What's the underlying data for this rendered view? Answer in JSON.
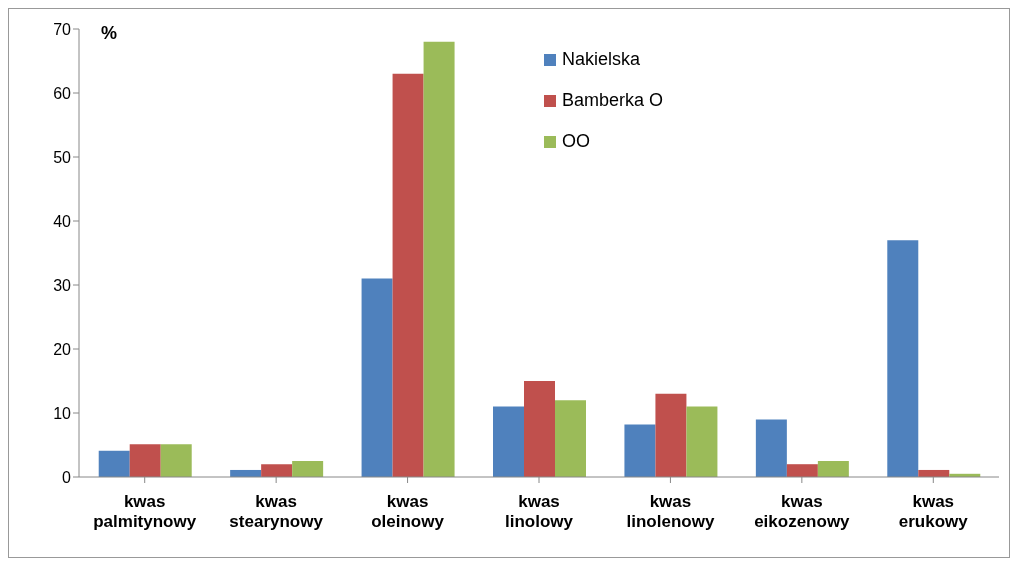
{
  "chart_data": {
    "type": "bar",
    "ylabel": "%",
    "categories": [
      "kwas palmitynowy",
      "kwas stearynowy",
      "kwas oleinowy",
      "kwas linolowy",
      "kwas linolenowy",
      "kwas eikozenowy",
      "kwas erukowy"
    ],
    "series": [
      {
        "name": "Nakielska",
        "color": "#4f81bd",
        "values": [
          4.1,
          1.1,
          31,
          11,
          8.2,
          9,
          37
        ]
      },
      {
        "name": "Bamberka O",
        "color": "#c0504d",
        "values": [
          5.1,
          2,
          63,
          15,
          13,
          2,
          1.1
        ]
      },
      {
        "name": "OO",
        "color": "#9bbb59",
        "values": [
          5.1,
          2.5,
          68,
          12,
          11,
          2.5,
          0.5
        ]
      }
    ],
    "ylim": [
      0,
      70
    ],
    "yticks": [
      0,
      10,
      20,
      30,
      40,
      50,
      60,
      70
    ],
    "grid": false,
    "legend": "top right"
  }
}
